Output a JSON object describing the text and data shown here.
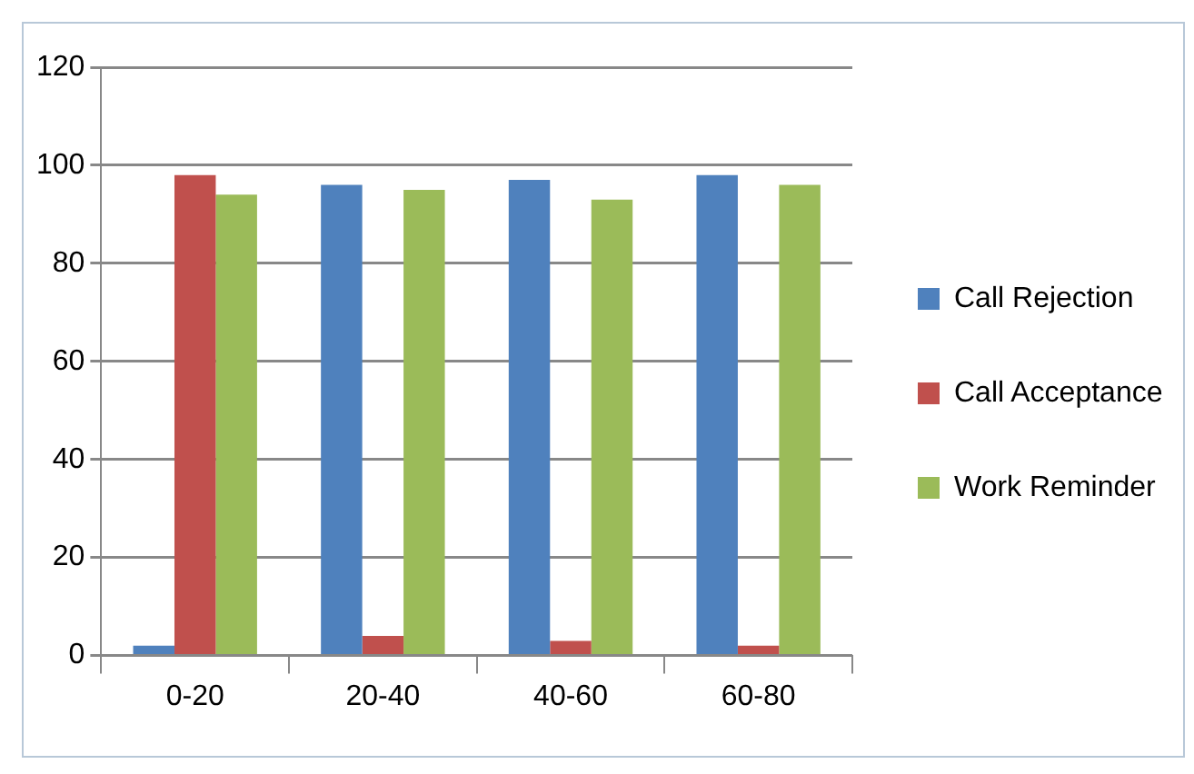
{
  "chart_data": {
    "type": "bar",
    "categories": [
      "0-20",
      "20-40",
      "40-60",
      "60-80"
    ],
    "series": [
      {
        "name": "Call Rejection",
        "color": "#4f81bd",
        "values": [
          2,
          96,
          97,
          98
        ]
      },
      {
        "name": "Call Acceptance",
        "color": "#c0504d",
        "values": [
          98,
          4,
          3,
          2
        ]
      },
      {
        "name": "Work Reminder",
        "color": "#9bbb59",
        "values": [
          94,
          95,
          93,
          96
        ]
      }
    ],
    "ylim": [
      0,
      120
    ],
    "yticks": [
      0,
      20,
      40,
      60,
      80,
      100,
      120
    ],
    "grid": "y",
    "legend": "right"
  }
}
